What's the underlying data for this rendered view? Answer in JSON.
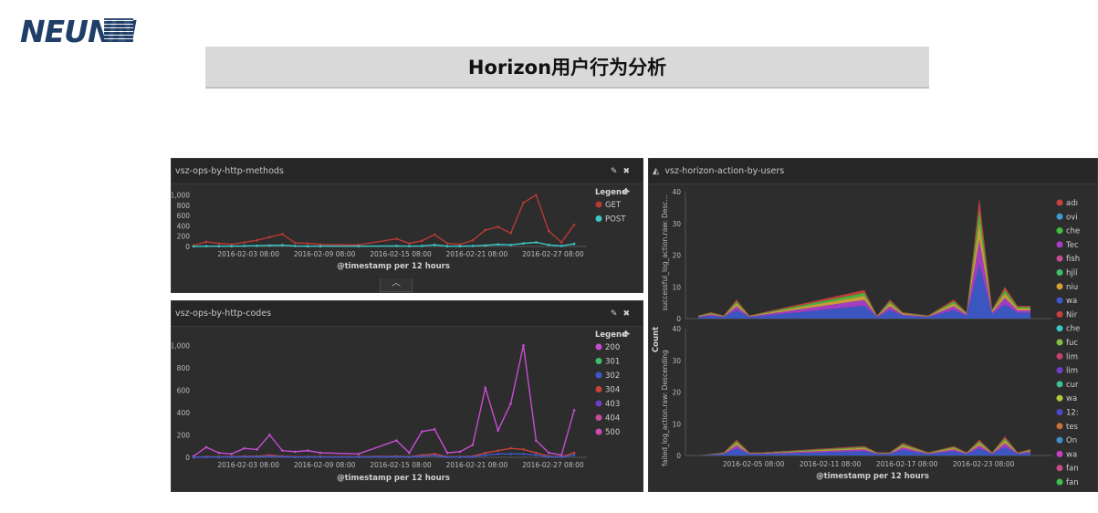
{
  "brand": {
    "logo_text": "NEUNN"
  },
  "page": {
    "title": "Horizon用户行为分析"
  },
  "panels": {
    "methods": {
      "title": "vsz-ops-by-http-methods",
      "legend_title": "Legend",
      "legend": [
        {
          "label": "GET",
          "color": "#b83a33"
        },
        {
          "label": "POST",
          "color": "#3cc7c7"
        }
      ],
      "y_ticks": [
        "1,000",
        "800",
        "600",
        "400",
        "200",
        "0"
      ],
      "x_ticks": [
        "2016-02-03 08:00",
        "2016-02-09 08:00",
        "2016-02-15 08:00",
        "2016-02-21 08:00",
        "2016-02-27 08:00"
      ],
      "x_title": "@timestamp per 12 hours",
      "collapse_icon": "chevron-up-icon"
    },
    "codes": {
      "title": "vsz-ops-by-http-codes",
      "legend_title": "Legend",
      "legend": [
        {
          "label": "200",
          "color": "#c64dd1"
        },
        {
          "label": "301",
          "color": "#3fbf6a"
        },
        {
          "label": "302",
          "color": "#3c58c8"
        },
        {
          "label": "304",
          "color": "#c8413a"
        },
        {
          "label": "403",
          "color": "#6c3ec8"
        },
        {
          "label": "404",
          "color": "#c84a9a"
        },
        {
          "label": "500",
          "color": "#c94bb3"
        }
      ],
      "y_ticks": [
        "1,000",
        "800",
        "600",
        "400",
        "200",
        "0"
      ],
      "x_ticks": [
        "2016-02-03 08:00",
        "2016-02-09 08:00",
        "2016-02-15 08:00",
        "2016-02-21 08:00",
        "2016-02-27 08:00"
      ],
      "x_title": "@timestamp per 12 hours"
    },
    "users": {
      "title": "vsz-horizon-action-by-users",
      "title_icon": "area-chart-icon",
      "y_title": "Count",
      "top_facet_label": "successful_log_action.raw: Desc...",
      "bottom_facet_label": "failed_log_action.raw: Descending",
      "top_y_ticks": [
        "40",
        "30",
        "20",
        "10",
        "0"
      ],
      "bottom_y_ticks": [
        "40",
        "30",
        "20",
        "10",
        "0"
      ],
      "x_ticks": [
        "2016-02-05 08:00",
        "2016-02-11 08:00",
        "2016-02-17 08:00",
        "2016-02-23 08:00"
      ],
      "x_title": "@timestamp per 12 hours",
      "legend": [
        {
          "label": "adı",
          "color": "#c8413a"
        },
        {
          "label": "ovi",
          "color": "#3c9bd6"
        },
        {
          "label": "che",
          "color": "#3fbf3f"
        },
        {
          "label": "Tec",
          "color": "#a83ec8"
        },
        {
          "label": "fish",
          "color": "#c84a9a"
        },
        {
          "label": "hjlí",
          "color": "#3fbf6a"
        },
        {
          "label": "niu",
          "color": "#d4a03a"
        },
        {
          "label": "wa",
          "color": "#3c58c8"
        },
        {
          "label": "Nir",
          "color": "#c8413a"
        },
        {
          "label": "che",
          "color": "#3cc7c7"
        },
        {
          "label": "fuc",
          "color": "#7fbf3f"
        },
        {
          "label": "lim",
          "color": "#c8416e"
        },
        {
          "label": "lim",
          "color": "#6c3ec8"
        },
        {
          "label": "cur",
          "color": "#3fbf9a"
        },
        {
          "label": "wa",
          "color": "#b5c83a"
        },
        {
          "label": "12:",
          "color": "#4a4ac8"
        },
        {
          "label": "tes",
          "color": "#c8703a"
        },
        {
          "label": "On",
          "color": "#3c8fc8"
        },
        {
          "label": "wa",
          "color": "#c83ec8"
        },
        {
          "label": "fan",
          "color": "#c84a8a"
        },
        {
          "label": "fan",
          "color": "#3fbf4a"
        }
      ]
    }
  },
  "chart_data": [
    {
      "type": "line",
      "title": "vsz-ops-by-http-methods",
      "xlabel": "@timestamp per 12 hours",
      "ylim": [
        0,
        1100
      ],
      "x": [
        "2016-01-30",
        "2016-01-31",
        "2016-02-01",
        "2016-02-02",
        "2016-02-03",
        "2016-02-04",
        "2016-02-05",
        "2016-02-06",
        "2016-02-07",
        "2016-02-08",
        "2016-02-09",
        "2016-02-12",
        "2016-02-15",
        "2016-02-16",
        "2016-02-17",
        "2016-02-18",
        "2016-02-19",
        "2016-02-20",
        "2016-02-21",
        "2016-02-22",
        "2016-02-23",
        "2016-02-24",
        "2016-02-25",
        "2016-02-26",
        "2016-02-27",
        "2016-02-28",
        "2016-02-29"
      ],
      "series": [
        {
          "name": "GET",
          "values": [
            20,
            90,
            60,
            40,
            80,
            120,
            180,
            240,
            70,
            60,
            40,
            30,
            150,
            60,
            110,
            230,
            60,
            40,
            120,
            320,
            380,
            260,
            850,
            1000,
            300,
            80,
            420
          ]
        },
        {
          "name": "POST",
          "values": [
            0,
            5,
            5,
            5,
            10,
            15,
            20,
            25,
            10,
            5,
            5,
            5,
            10,
            5,
            10,
            30,
            5,
            5,
            10,
            20,
            40,
            30,
            60,
            80,
            30,
            10,
            50
          ]
        }
      ]
    },
    {
      "type": "line",
      "title": "vsz-ops-by-http-codes",
      "xlabel": "@timestamp per 12 hours",
      "ylim": [
        0,
        1100
      ],
      "x": [
        "2016-01-30",
        "2016-01-31",
        "2016-02-01",
        "2016-02-02",
        "2016-02-03",
        "2016-02-04",
        "2016-02-05",
        "2016-02-06",
        "2016-02-07",
        "2016-02-08",
        "2016-02-09",
        "2016-02-12",
        "2016-02-15",
        "2016-02-16",
        "2016-02-17",
        "2016-02-18",
        "2016-02-19",
        "2016-02-20",
        "2016-02-21",
        "2016-02-22",
        "2016-02-23",
        "2016-02-24",
        "2016-02-25",
        "2016-02-26",
        "2016-02-27",
        "2016-02-28",
        "2016-02-29"
      ],
      "series": [
        {
          "name": "200",
          "values": [
            10,
            90,
            40,
            30,
            80,
            70,
            200,
            60,
            50,
            60,
            40,
            30,
            150,
            40,
            230,
            250,
            40,
            50,
            110,
            620,
            240,
            480,
            1000,
            150,
            40,
            20,
            420
          ]
        },
        {
          "name": "304",
          "values": [
            0,
            5,
            5,
            5,
            10,
            10,
            20,
            10,
            5,
            5,
            5,
            5,
            10,
            5,
            20,
            30,
            5,
            5,
            10,
            40,
            60,
            80,
            70,
            40,
            10,
            5,
            40
          ]
        },
        {
          "name": "302",
          "values": [
            0,
            2,
            2,
            2,
            5,
            5,
            10,
            5,
            2,
            2,
            2,
            2,
            5,
            2,
            10,
            15,
            2,
            2,
            5,
            20,
            30,
            30,
            30,
            20,
            5,
            2,
            20
          ]
        }
      ]
    },
    {
      "type": "area",
      "title": "vsz-horizon-action-by-users",
      "ylabel": "Count",
      "xlabel": "@timestamp per 12 hours",
      "ylim": [
        0,
        40
      ],
      "facets": [
        {
          "label": "successful_log_action.raw: Desc...",
          "x": [
            "2016-02-01",
            "2016-02-02",
            "2016-02-03",
            "2016-02-04",
            "2016-02-05",
            "2016-02-14",
            "2016-02-15",
            "2016-02-16",
            "2016-02-17",
            "2016-02-19",
            "2016-02-21",
            "2016-02-22",
            "2016-02-23",
            "2016-02-24",
            "2016-02-25",
            "2016-02-26",
            "2016-02-27"
          ],
          "values": [
            1,
            2,
            1,
            6,
            1,
            9,
            1,
            6,
            2,
            1,
            6,
            2,
            38,
            3,
            10,
            4,
            4
          ]
        },
        {
          "label": "failed_log_action.raw: Descending",
          "x": [
            "2016-02-01",
            "2016-02-03",
            "2016-02-04",
            "2016-02-05",
            "2016-02-06",
            "2016-02-14",
            "2016-02-15",
            "2016-02-16",
            "2016-02-17",
            "2016-02-19",
            "2016-02-21",
            "2016-02-22",
            "2016-02-23",
            "2016-02-24",
            "2016-02-25",
            "2016-02-26",
            "2016-02-27"
          ],
          "values": [
            0,
            1,
            5,
            1,
            1,
            3,
            1,
            1,
            4,
            1,
            3,
            1,
            5,
            1,
            6,
            1,
            2
          ]
        }
      ]
    }
  ]
}
